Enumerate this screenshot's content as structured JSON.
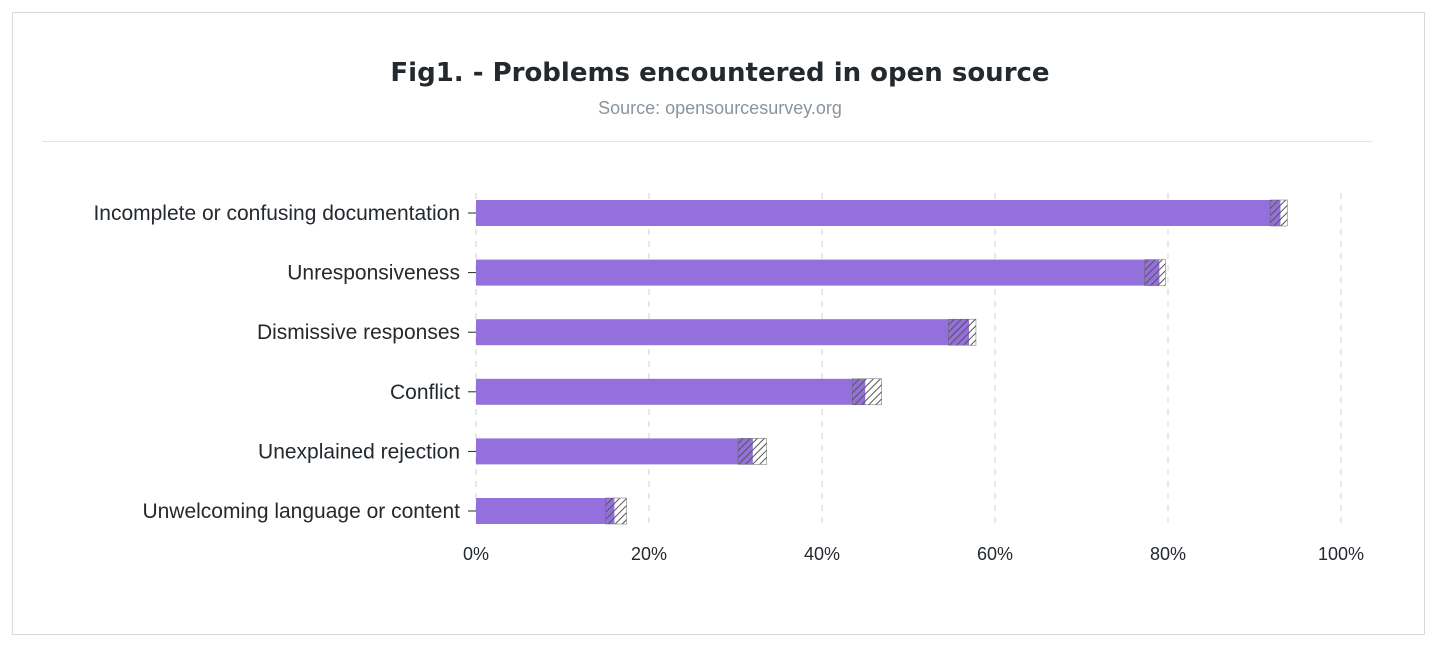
{
  "chart_data": {
    "type": "bar",
    "orientation": "horizontal",
    "title": "Fig1. - Problems encountered in open source",
    "subtitle": "Source: opensourcesurvey.org",
    "categories": [
      "Incomplete or confusing documentation",
      "Unresponsiveness",
      "Dismissive responses",
      "Conflict",
      "Unexplained rejection",
      "Unwelcoming language or content"
    ],
    "values": [
      93,
      79,
      57,
      45,
      32,
      16
    ],
    "error_low": [
      91.8,
      77.3,
      54.6,
      43.5,
      30.3,
      15.0
    ],
    "error_high": [
      93.8,
      79.7,
      57.8,
      46.9,
      33.6,
      17.4
    ],
    "xlim": [
      0,
      100
    ],
    "xticks": [
      0,
      20,
      40,
      60,
      80,
      100
    ],
    "xtick_labels": [
      "0%",
      "20%",
      "40%",
      "60%",
      "80%",
      "100%"
    ],
    "grid": "vertical-dashed",
    "colors": {
      "bar": "#9370db",
      "text": "#24292e",
      "subtitle": "#8a949e",
      "grid": "#e0e0e0",
      "hatch": "#555555"
    }
  }
}
